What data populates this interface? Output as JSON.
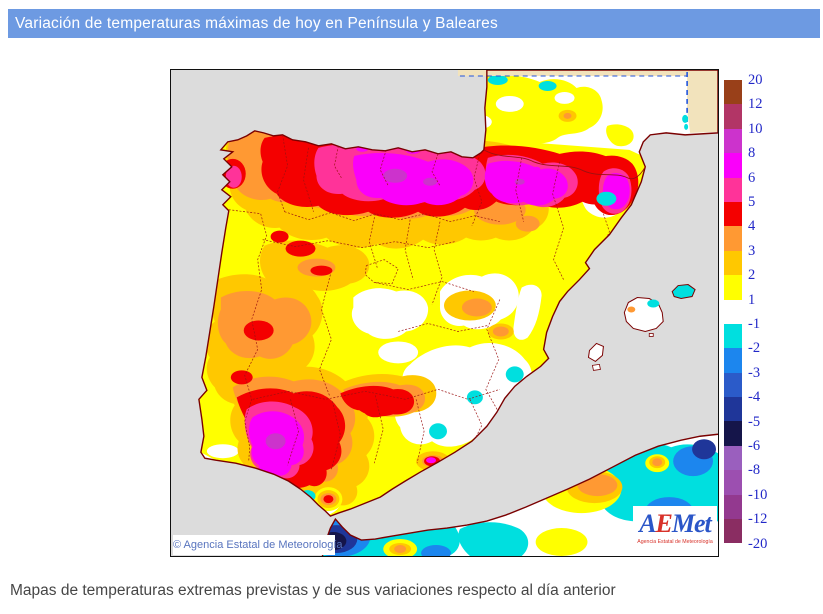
{
  "header": {
    "title": "Variación de temperaturas máximas de hoy en Península y Baleares",
    "bg_color": "#6D9AE2",
    "text_color": "#FFFFFF"
  },
  "legend": {
    "labels": [
      "20",
      "12",
      "10",
      "8",
      "6",
      "5",
      "4",
      "3",
      "2",
      "1",
      "-1",
      "-2",
      "-3",
      "-4",
      "-5",
      "-6",
      "-8",
      "-10",
      "-12",
      "-20"
    ],
    "block_colors": [
      "#994019",
      "#B23566",
      "#CC33CC",
      "#FA00FA",
      "#FF3399",
      "#F40000",
      "#FF9933",
      "#FFC800",
      "#FFFF00",
      "#FFFFFF",
      "#00DFDF",
      "#1C86EE",
      "#2B5BC9",
      "#1F3699",
      "#15154A",
      "#9A5FBE",
      "#9C4FB0",
      "#93398F",
      "#8A2D62"
    ],
    "number_color": "#2228C8"
  },
  "map": {
    "copyright": "© Agencia Estatal de Meteorología",
    "logo": {
      "a": "A",
      "e": "E",
      "met": "Met",
      "subtitle": "Agencia Estatal de Meteorología"
    },
    "sea_color": "#DCDCDC",
    "land_color": "#FFFFFF",
    "coast_color": "#7A0000",
    "province_border_color": "#9B1010",
    "out_of_domain_color": "#F2E3BC",
    "domain_boundary_color": "#2255DD"
  },
  "palette": {
    "p20": "#994019",
    "p12": "#B23566",
    "p10": "#CC33CC",
    "p8": "#FA00FA",
    "p6": "#FF3399",
    "p5": "#F40000",
    "p4": "#FF9933",
    "p3": "#FFC800",
    "p2": "#FFFF00",
    "zero": "#FFFFFF",
    "m1": "#00DFDF",
    "m2": "#1C86EE",
    "m3": "#2B5BC9",
    "m4": "#1F3699",
    "m5": "#15154A",
    "m6": "#9A5FBE",
    "m8": "#9C4FB0",
    "m10": "#93398F",
    "m12": "#8A2D62"
  },
  "caption": "Mapas de temperaturas extremas previstas y de sus variaciones respecto al día anterior"
}
